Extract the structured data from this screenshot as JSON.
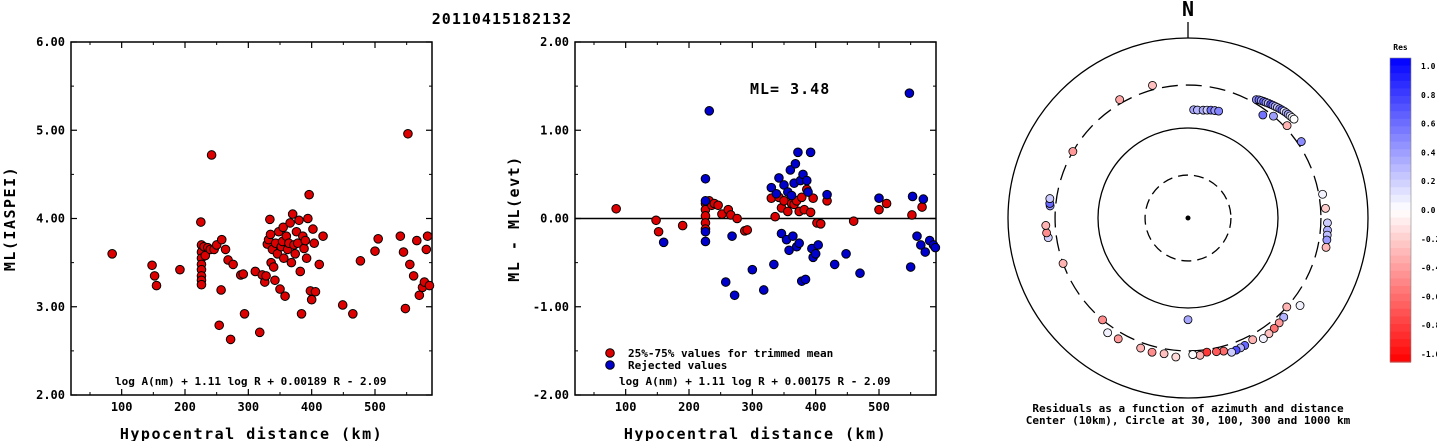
{
  "title": "20110415182132",
  "chart_data": [
    {
      "type": "scatter",
      "xlabel": "Hypocentral distance (km)",
      "ylabel": "ML(IASPEI)",
      "xlim": [
        20,
        590
      ],
      "ylim": [
        2.0,
        6.0
      ],
      "xticks": [
        100,
        200,
        300,
        400,
        500
      ],
      "xtick_labels": [
        "100",
        "200",
        "300",
        "400",
        "500"
      ],
      "yticks": [
        2,
        3,
        4,
        5,
        6
      ],
      "ytick_labels": [
        "2.00",
        "3.00",
        "4.00",
        "5.00",
        "6.00"
      ],
      "formula": "log A(nm) + 1.11 log R + 0.00189 R - 2.09",
      "marker_color": "#dd0000",
      "points": [
        [
          85,
          3.6
        ],
        [
          148,
          3.47
        ],
        [
          152,
          3.35
        ],
        [
          155,
          3.24
        ],
        [
          192,
          3.42
        ],
        [
          225,
          3.96
        ],
        [
          226,
          3.7
        ],
        [
          226,
          3.62
        ],
        [
          226,
          3.55
        ],
        [
          226,
          3.48
        ],
        [
          226,
          3.42
        ],
        [
          226,
          3.35
        ],
        [
          226,
          3.3
        ],
        [
          226,
          3.25
        ],
        [
          230,
          3.68
        ],
        [
          232,
          3.58
        ],
        [
          236,
          3.67
        ],
        [
          240,
          3.65
        ],
        [
          242,
          4.72
        ],
        [
          246,
          3.65
        ],
        [
          250,
          3.7
        ],
        [
          254,
          2.79
        ],
        [
          257,
          3.19
        ],
        [
          258,
          3.76
        ],
        [
          264,
          3.65
        ],
        [
          268,
          3.53
        ],
        [
          272,
          2.63
        ],
        [
          276,
          3.48
        ],
        [
          288,
          3.36
        ],
        [
          292,
          3.37
        ],
        [
          294,
          2.92
        ],
        [
          311,
          3.4
        ],
        [
          318,
          2.71
        ],
        [
          322,
          3.36
        ],
        [
          326,
          3.28
        ],
        [
          328,
          3.35
        ],
        [
          330,
          3.71
        ],
        [
          332,
          3.76
        ],
        [
          334,
          3.99
        ],
        [
          335,
          3.82
        ],
        [
          336,
          3.5
        ],
        [
          338,
          3.65
        ],
        [
          340,
          3.45
        ],
        [
          342,
          3.3
        ],
        [
          343,
          3.72
        ],
        [
          346,
          3.6
        ],
        [
          348,
          3.85
        ],
        [
          350,
          3.2
        ],
        [
          352,
          3.68
        ],
        [
          354,
          3.74
        ],
        [
          355,
          3.9
        ],
        [
          356,
          3.55
        ],
        [
          358,
          3.12
        ],
        [
          360,
          3.8
        ],
        [
          362,
          3.65
        ],
        [
          364,
          3.72
        ],
        [
          366,
          3.95
        ],
        [
          368,
          3.5
        ],
        [
          370,
          4.05
        ],
        [
          372,
          3.7
        ],
        [
          374,
          3.6
        ],
        [
          376,
          3.85
        ],
        [
          378,
          3.72
        ],
        [
          380,
          3.98
        ],
        [
          382,
          3.4
        ],
        [
          384,
          2.92
        ],
        [
          386,
          3.8
        ],
        [
          388,
          3.66
        ],
        [
          390,
          3.75
        ],
        [
          392,
          3.55
        ],
        [
          394,
          4.0
        ],
        [
          396,
          4.27
        ],
        [
          398,
          3.18
        ],
        [
          400,
          3.08
        ],
        [
          402,
          3.88
        ],
        [
          404,
          3.72
        ],
        [
          406,
          3.17
        ],
        [
          412,
          3.48
        ],
        [
          418,
          3.8
        ],
        [
          449,
          3.02
        ],
        [
          465,
          2.92
        ],
        [
          477,
          3.52
        ],
        [
          500,
          3.63
        ],
        [
          505,
          3.77
        ],
        [
          540,
          3.8
        ],
        [
          545,
          3.62
        ],
        [
          548,
          2.98
        ],
        [
          552,
          4.96
        ],
        [
          555,
          3.48
        ],
        [
          561,
          3.35
        ],
        [
          566,
          3.75
        ],
        [
          570,
          3.13
        ],
        [
          575,
          3.22
        ],
        [
          578,
          3.28
        ],
        [
          581,
          3.65
        ],
        [
          583,
          3.8
        ],
        [
          586,
          3.24
        ]
      ]
    },
    {
      "type": "scatter",
      "xlabel": "Hypocentral distance (km)",
      "ylabel": "ML - ML(evt)",
      "xlim": [
        20,
        590
      ],
      "ylim": [
        -2.0,
        2.0
      ],
      "xticks": [
        100,
        200,
        300,
        400,
        500
      ],
      "xtick_labels": [
        "100",
        "200",
        "300",
        "400",
        "500"
      ],
      "yticks": [
        -2,
        -1,
        0,
        1,
        2
      ],
      "ytick_labels": [
        "-2.00",
        "-1.00",
        "0.00",
        "1.00",
        "2.00"
      ],
      "annotation": "ML= 3.48",
      "formula": "log A(nm) + 1.11 log R + 0.00175 R - 2.09",
      "legend": [
        {
          "label": "25%-75% values for trimmed mean",
          "color": "#dd0000"
        },
        {
          "label": "Rejected values",
          "color": "#0000cc"
        }
      ],
      "series": [
        {
          "name": "25%-75% values for trimmed mean",
          "color": "#dd0000",
          "points": [
            [
              85,
              0.11
            ],
            [
              148,
              -0.02
            ],
            [
              152,
              -0.15
            ],
            [
              190,
              -0.08
            ],
            [
              226,
              0.17
            ],
            [
              226,
              0.1
            ],
            [
              226,
              0.03
            ],
            [
              226,
              -0.05
            ],
            [
              226,
              -0.12
            ],
            [
              232,
              0.2
            ],
            [
              236,
              0.15
            ],
            [
              240,
              0.17
            ],
            [
              246,
              0.15
            ],
            [
              252,
              0.05
            ],
            [
              262,
              0.1
            ],
            [
              266,
              0.04
            ],
            [
              276,
              0.0
            ],
            [
              288,
              -0.14
            ],
            [
              292,
              -0.13
            ],
            [
              330,
              0.23
            ],
            [
              336,
              0.02
            ],
            [
              342,
              0.24
            ],
            [
              346,
              0.12
            ],
            [
              350,
              0.2
            ],
            [
              356,
              0.08
            ],
            [
              362,
              0.17
            ],
            [
              366,
              0.16
            ],
            [
              370,
              0.2
            ],
            [
              374,
              0.08
            ],
            [
              378,
              0.24
            ],
            [
              382,
              0.1
            ],
            [
              386,
              0.33
            ],
            [
              392,
              0.07
            ],
            [
              396,
              0.23
            ],
            [
              402,
              -0.05
            ],
            [
              408,
              -0.06
            ],
            [
              418,
              0.2
            ],
            [
              460,
              -0.03
            ],
            [
              500,
              0.1
            ],
            [
              512,
              0.17
            ],
            [
              552,
              0.04
            ],
            [
              568,
              0.13
            ]
          ]
        },
        {
          "name": "Rejected values",
          "color": "#0000cc",
          "points": [
            [
              160,
              -0.27
            ],
            [
              226,
              0.45
            ],
            [
              226,
              0.2
            ],
            [
              226,
              -0.15
            ],
            [
              226,
              -0.26
            ],
            [
              232,
              1.22
            ],
            [
              258,
              -0.72
            ],
            [
              268,
              -0.2
            ],
            [
              272,
              -0.87
            ],
            [
              300,
              -0.58
            ],
            [
              318,
              -0.81
            ],
            [
              330,
              0.35
            ],
            [
              334,
              -0.52
            ],
            [
              338,
              0.28
            ],
            [
              342,
              0.46
            ],
            [
              346,
              -0.17
            ],
            [
              350,
              0.38
            ],
            [
              354,
              -0.24
            ],
            [
              356,
              0.3
            ],
            [
              358,
              -0.36
            ],
            [
              360,
              0.55
            ],
            [
              362,
              0.26
            ],
            [
              364,
              -0.2
            ],
            [
              366,
              0.4
            ],
            [
              368,
              0.62
            ],
            [
              370,
              -0.32
            ],
            [
              372,
              0.75
            ],
            [
              374,
              -0.28
            ],
            [
              376,
              0.43
            ],
            [
              378,
              -0.71
            ],
            [
              380,
              0.5
            ],
            [
              384,
              -0.69
            ],
            [
              386,
              0.43
            ],
            [
              388,
              0.3
            ],
            [
              392,
              0.75
            ],
            [
              394,
              -0.34
            ],
            [
              396,
              -0.44
            ],
            [
              400,
              -0.4
            ],
            [
              404,
              -0.3
            ],
            [
              418,
              0.27
            ],
            [
              430,
              -0.52
            ],
            [
              448,
              -0.4
            ],
            [
              470,
              -0.62
            ],
            [
              500,
              0.23
            ],
            [
              548,
              1.42
            ],
            [
              550,
              -0.55
            ],
            [
              553,
              0.25
            ],
            [
              560,
              -0.2
            ],
            [
              566,
              -0.3
            ],
            [
              570,
              0.22
            ],
            [
              573,
              -0.38
            ],
            [
              580,
              -0.25
            ],
            [
              586,
              -0.3
            ],
            [
              589,
              -0.33
            ]
          ]
        }
      ]
    },
    {
      "type": "scatter",
      "north_label": "N",
      "caption": [
        "Residuals as a function of azimuth and distance",
        "Center (10km), Circle at 30, 100, 300 and 1000 km"
      ],
      "colorbar": {
        "title": "Res",
        "range": [
          -1.0,
          1.0
        ],
        "tick_labels": [
          "1.0",
          "0.8",
          "0.6",
          "0.4",
          "0.2",
          "0.0",
          "-0.2",
          "-0.4",
          "-0.6",
          "-0.8",
          "-1.0"
        ],
        "low_color": "#ff0000",
        "high_color": "#0000ff"
      },
      "rings_km": [
        30,
        100,
        300,
        1000
      ],
      "points_note": "azimuth (deg from north, clockwise), distance (km), residual",
      "points": [
        [
          3,
          160,
          0.35
        ],
        [
          5,
          160,
          0.3
        ],
        [
          8,
          162,
          0.32
        ],
        [
          10,
          165,
          0.2
        ],
        [
          12,
          168,
          0.55
        ],
        [
          14,
          170,
          0.4
        ],
        [
          16,
          172,
          0.48
        ],
        [
          30,
          330,
          0.45
        ],
        [
          31,
          340,
          0.55
        ],
        [
          32,
          345,
          0.35
        ],
        [
          33,
          350,
          0.6
        ],
        [
          34,
          355,
          0.42
        ],
        [
          35,
          360,
          0.25
        ],
        [
          36,
          365,
          0.7
        ],
        [
          37,
          370,
          0.5
        ],
        [
          38,
          375,
          0.3
        ],
        [
          39,
          380,
          0.2
        ],
        [
          40,
          385,
          0.45
        ],
        [
          41,
          390,
          0.6
        ],
        [
          42,
          395,
          0.1
        ],
        [
          43,
          398,
          0.28
        ],
        [
          44,
          400,
          0.35
        ],
        [
          45,
          402,
          0.15
        ],
        [
          46,
          405,
          0.05
        ],
        [
          47,
          408,
          0.0
        ],
        [
          40,
          300,
          0.38
        ],
        [
          47,
          320,
          -0.3
        ],
        [
          56,
          330,
          0.45
        ],
        [
          36,
          260,
          0.55
        ],
        [
          80,
          330,
          0.05
        ],
        [
          86,
          340,
          -0.2
        ],
        [
          92,
          355,
          0.2
        ],
        [
          95,
          360,
          0.32
        ],
        [
          97,
          362,
          0.25
        ],
        [
          99,
          365,
          0.4
        ],
        [
          102,
          370,
          -0.28
        ],
        [
          128,
          380,
          0.05
        ],
        [
          132,
          300,
          -0.3
        ],
        [
          136,
          340,
          0.3
        ],
        [
          139,
          350,
          -0.4
        ],
        [
          142,
          360,
          -0.55
        ],
        [
          145,
          370,
          -0.25
        ],
        [
          148,
          380,
          0.05
        ],
        [
          152,
          340,
          -0.3
        ],
        [
          156,
          355,
          0.6
        ],
        [
          158,
          360,
          0.3
        ],
        [
          160,
          365,
          0.7
        ],
        [
          162,
          370,
          0.2
        ],
        [
          165,
          340,
          -0.58
        ],
        [
          168,
          330,
          -0.65
        ],
        [
          172,
          320,
          -0.78
        ],
        [
          175,
          340,
          -0.3
        ],
        [
          178,
          330,
          0.0
        ],
        [
          180,
          135,
          0.35
        ],
        [
          185,
          355,
          -0.15
        ],
        [
          190,
          340,
          -0.25
        ],
        [
          195,
          350,
          -0.45
        ],
        [
          200,
          345,
          -0.3
        ],
        [
          210,
          355,
          -0.4
        ],
        [
          215,
          360,
          0.05
        ],
        [
          220,
          300,
          -0.45
        ],
        [
          250,
          300,
          -0.3
        ],
        [
          262,
          370,
          0.18
        ],
        [
          264,
          380,
          -0.45
        ],
        [
          267,
          382,
          -0.3
        ],
        [
          275,
          345,
          0.4
        ],
        [
          276,
          350,
          0.6
        ],
        [
          278,
          355,
          0.2
        ],
        [
          300,
          300,
          -0.4
        ],
        [
          330,
          330,
          -0.35
        ],
        [
          345,
          335,
          -0.25
        ]
      ]
    }
  ]
}
